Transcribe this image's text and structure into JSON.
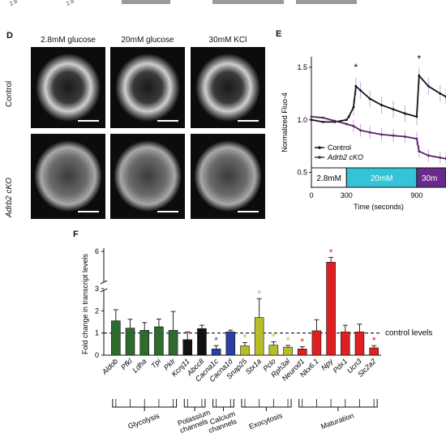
{
  "top_strip": {
    "labels": [
      "2.8",
      "2.8"
    ]
  },
  "panel_d": {
    "label": "D",
    "columns": [
      "2.8mM glucose",
      "20mM glucose",
      "30mM KCl"
    ],
    "rows": [
      "Control",
      "Adrb2 cKO"
    ]
  },
  "panel_e": {
    "label": "E",
    "ylabel": "Normalized Fluo-4",
    "xlabel": "Time (seconds)",
    "legend": [
      "Control",
      "Adrb2 cKO"
    ],
    "stim_bar": [
      "2.8mM",
      "20mM",
      "30m"
    ],
    "colors": {
      "control": "#111111",
      "cko": "#5c1f6b",
      "bar_20": "#35c3d8",
      "bar_30": "#6a2a8c"
    },
    "chart_data": {
      "type": "line",
      "x_ticks": [
        0,
        300,
        900
      ],
      "y_ticks": [
        0.5,
        1.0,
        1.5
      ],
      "xlim": [
        0,
        1150
      ],
      "ylim": [
        0.35,
        1.6
      ],
      "xlabel": "Time (seconds)",
      "ylabel": "Normalized Fluo-4",
      "annotations": [
        "*",
        "*"
      ],
      "series": [
        {
          "name": "Control",
          "x": [
            0,
            100,
            200,
            300,
            320,
            360,
            380,
            420,
            500,
            600,
            700,
            800,
            900,
            920,
            1000,
            1100,
            1150
          ],
          "y": [
            1.0,
            0.98,
            0.98,
            1.0,
            1.03,
            1.12,
            1.32,
            1.28,
            1.2,
            1.14,
            1.1,
            1.06,
            1.03,
            1.42,
            1.32,
            1.25,
            1.22
          ]
        },
        {
          "name": "Adrb2 cKO",
          "x": [
            0,
            100,
            200,
            300,
            360,
            420,
            500,
            600,
            700,
            800,
            900,
            920,
            1000,
            1100,
            1150
          ],
          "y": [
            1.03,
            1.02,
            0.99,
            0.96,
            0.94,
            0.9,
            0.88,
            0.86,
            0.85,
            0.84,
            0.82,
            0.7,
            0.66,
            0.64,
            0.63
          ]
        }
      ]
    }
  },
  "panel_f": {
    "label": "F",
    "ylabel": "Fold change in transcript levels",
    "control_label": "control levels",
    "groups": [
      "Glycolysis",
      "Potassium channels",
      "Calcium channels",
      "Exocytosis",
      "Maturation"
    ],
    "chart_data": {
      "type": "bar",
      "categories": [
        "Aldob",
        "Pfkl",
        "Ldha",
        "Tpi",
        "Pklr",
        "Kcnj11",
        "Abcc8",
        "Cacna1c",
        "Cacna1d",
        "Snap25",
        "Stx1a",
        "Pclo",
        "Rph3al",
        "Neurod1",
        "Nkx6.1",
        "Npy",
        "Pdx1",
        "Ucn3",
        "Slc2a2"
      ],
      "values": [
        1.55,
        1.22,
        1.12,
        1.28,
        1.12,
        0.7,
        1.2,
        0.28,
        1.05,
        0.42,
        1.7,
        0.45,
        0.36,
        0.28,
        1.1,
        5.0,
        1.05,
        1.05,
        0.33
      ],
      "errors": [
        0.5,
        0.4,
        0.35,
        0.35,
        0.85,
        0.35,
        0.15,
        0.15,
        0.08,
        0.15,
        0.85,
        0.15,
        0.08,
        0.1,
        0.5,
        0.45,
        0.3,
        0.35,
        0.1
      ],
      "colors": [
        "#2e6b2e",
        "#2e6b2e",
        "#2e6b2e",
        "#2e6b2e",
        "#2e6b2e",
        "#111111",
        "#111111",
        "#2b3fa0",
        "#2b3fa0",
        "#b9bd2a",
        "#b9bd2a",
        "#b9bd2a",
        "#b9bd2a",
        "#e02020",
        "#e02020",
        "#e02020",
        "#e02020",
        "#e02020",
        "#e02020"
      ],
      "significant": [
        "Cacna1c",
        "Snap25",
        "Stx1a",
        "Pclo",
        "Rph3al",
        "Neurod1",
        "Npy",
        "Slc2a2"
      ],
      "y_ticks": [
        0,
        1,
        2,
        3,
        6
      ],
      "ylabel": "Fold change in transcript levels",
      "reference_line": 1
    }
  }
}
